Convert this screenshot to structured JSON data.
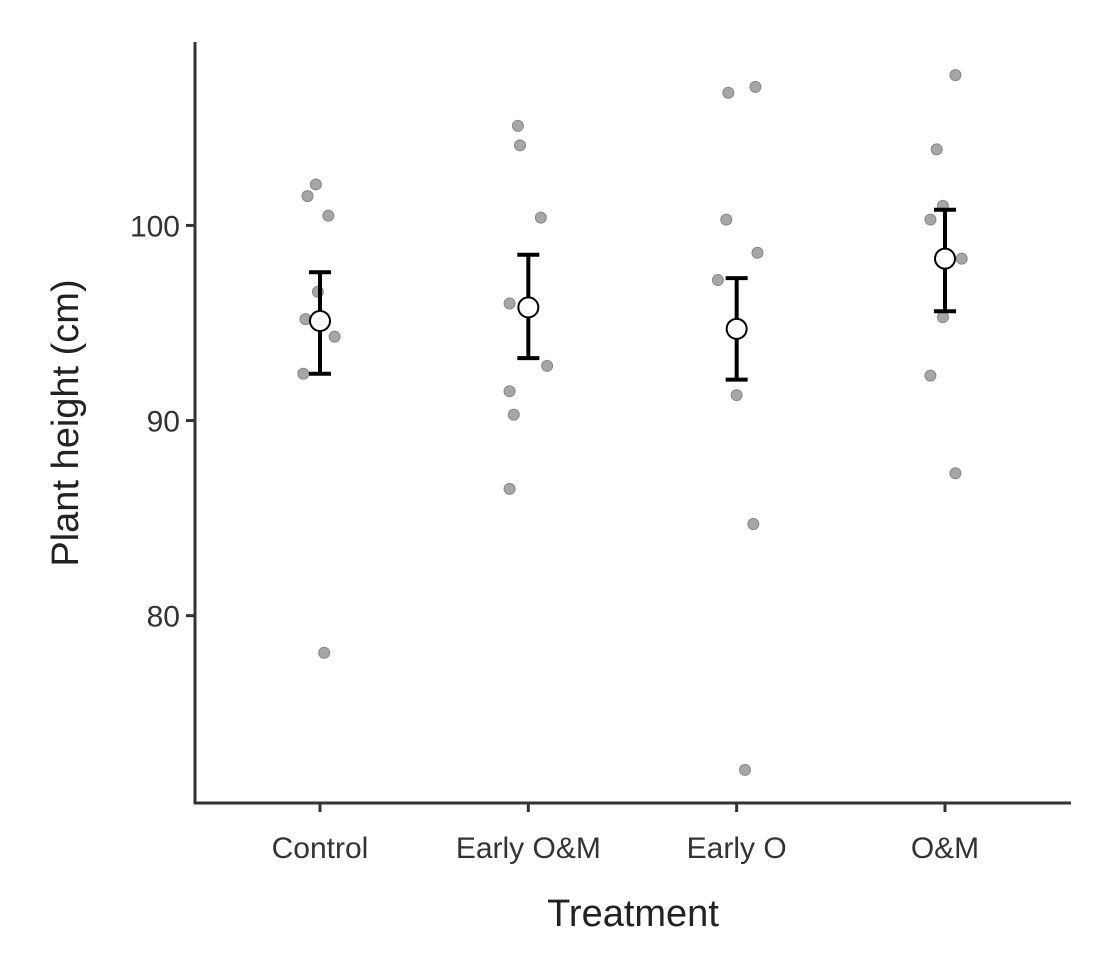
{
  "chart_data": {
    "type": "scatter",
    "title": "",
    "xlabel": "Treatment",
    "ylabel": "Plant height (cm)",
    "categories": [
      "Control",
      "Early O&M",
      "Early O",
      "O&M"
    ],
    "ylim": [
      70.4,
      109.4
    ],
    "yticks": [
      80,
      90,
      100
    ],
    "ytick_labels": [
      "80",
      "90",
      "100"
    ],
    "grid": false,
    "point_color": "#a6a6a6",
    "series": [
      {
        "name": "Control",
        "values": [
          102.1,
          101.5,
          100.5,
          96.6,
          95.2,
          94.3,
          92.4,
          78.1
        ],
        "jitter": [
          -0.02,
          -0.06,
          0.04,
          -0.01,
          -0.07,
          0.07,
          -0.08,
          0.02
        ],
        "mean": 95.1,
        "error_low": 92.4,
        "error_high": 97.6
      },
      {
        "name": "Early O&M",
        "values": [
          105.1,
          104.1,
          100.4,
          96.0,
          92.8,
          91.5,
          90.3,
          86.5
        ],
        "jitter": [
          -0.05,
          -0.04,
          0.06,
          -0.09,
          0.09,
          -0.09,
          -0.07,
          -0.09
        ],
        "mean": 95.8,
        "error_low": 93.2,
        "error_high": 98.5
      },
      {
        "name": "Early O",
        "values": [
          107.1,
          106.8,
          100.3,
          98.6,
          97.2,
          91.3,
          84.7,
          72.1
        ],
        "jitter": [
          0.09,
          -0.04,
          -0.05,
          0.1,
          -0.09,
          0.0,
          0.08,
          0.04
        ],
        "mean": 94.7,
        "error_low": 92.1,
        "error_high": 97.3
      },
      {
        "name": "O&M",
        "values": [
          107.7,
          103.9,
          101.0,
          100.3,
          98.3,
          95.3,
          92.3,
          87.3
        ],
        "jitter": [
          0.05,
          -0.04,
          -0.01,
          -0.07,
          0.08,
          -0.01,
          -0.07,
          0.05
        ],
        "mean": 98.3,
        "error_low": 95.6,
        "error_high": 100.8
      }
    ]
  }
}
